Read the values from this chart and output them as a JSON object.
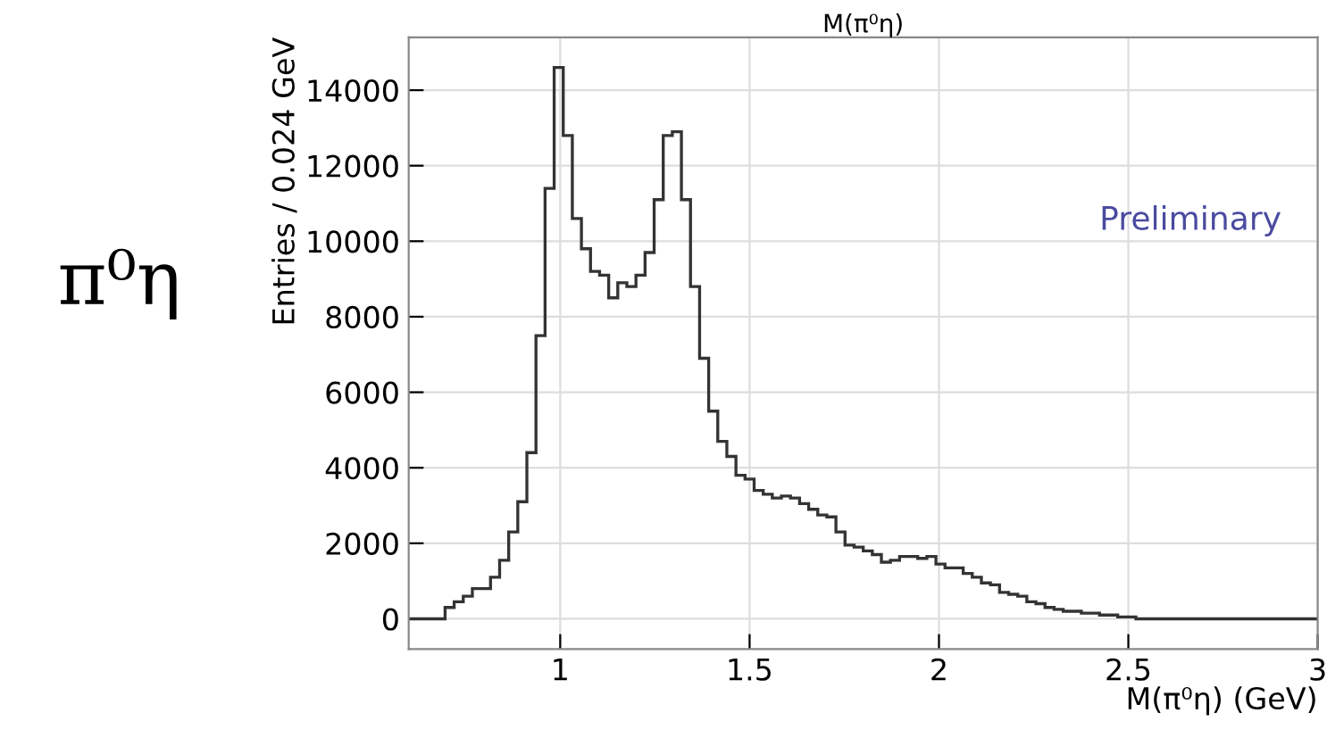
{
  "chart_data": {
    "type": "histogram",
    "title": "M(π⁰η)",
    "xlabel": "M(π⁰η) (GeV)",
    "ylabel": "Entries / 0.024 GeV",
    "annotations": [
      "π⁰η",
      "Preliminary"
    ],
    "bins": [
      0.6,
      0.624,
      0.648,
      0.672,
      0.696,
      0.72,
      0.744,
      0.768,
      0.792,
      0.816,
      0.84,
      0.864,
      0.888,
      0.912,
      0.936,
      0.96,
      0.984,
      1.008,
      1.032,
      1.056,
      1.08,
      1.104,
      1.128,
      1.152,
      1.176,
      1.2,
      1.224,
      1.248,
      1.272,
      1.296,
      1.32,
      1.344,
      1.368,
      1.392,
      1.416,
      1.44,
      1.464,
      1.488,
      1.512,
      1.536,
      1.56,
      1.584,
      1.608,
      1.632,
      1.656,
      1.68,
      1.704,
      1.728,
      1.752,
      1.776,
      1.8,
      1.824,
      1.848,
      1.872,
      1.896,
      1.92,
      1.944,
      1.968,
      1.992,
      2.016,
      2.04,
      2.064,
      2.088,
      2.112,
      2.136,
      2.16,
      2.184,
      2.208,
      2.232,
      2.256,
      2.28,
      2.304,
      2.328,
      2.352,
      2.376,
      2.4,
      2.424,
      2.448,
      2.472,
      2.496,
      2.52,
      2.544,
      2.568,
      2.592,
      2.616,
      2.64,
      2.664,
      2.688,
      2.712,
      2.736,
      2.76,
      2.784,
      2.808,
      2.832,
      2.856,
      2.88,
      2.904,
      2.928,
      2.952,
      2.976,
      3.0
    ],
    "values": [
      0,
      0,
      0,
      0,
      300,
      450,
      600,
      800,
      800,
      1100,
      1550,
      2300,
      3100,
      4400,
      7500,
      11400,
      14600,
      12800,
      10600,
      9800,
      9200,
      9100,
      8500,
      8900,
      8800,
      9100,
      9700,
      11100,
      12800,
      12900,
      11100,
      8800,
      6900,
      5500,
      4700,
      4300,
      3800,
      3700,
      3400,
      3300,
      3200,
      3250,
      3200,
      3050,
      2900,
      2750,
      2700,
      2300,
      1950,
      1900,
      1800,
      1700,
      1500,
      1550,
      1650,
      1650,
      1600,
      1650,
      1450,
      1350,
      1350,
      1200,
      1100,
      950,
      900,
      700,
      650,
      600,
      450,
      400,
      300,
      250,
      200,
      200,
      150,
      150,
      100,
      100,
      50,
      50,
      0,
      0,
      0,
      0,
      0,
      0,
      0,
      0,
      0,
      0,
      0,
      0,
      0,
      0,
      0,
      0,
      0,
      0,
      0,
      0
    ],
    "color": "#333333",
    "xlim": [
      0.6,
      3
    ],
    "xticks": [
      1,
      1.5,
      2,
      2.5,
      3
    ],
    "ylim": [
      -800,
      15400
    ],
    "yticks": [
      0,
      2000,
      4000,
      6000,
      8000,
      10000,
      12000,
      14000
    ],
    "grid": true
  }
}
